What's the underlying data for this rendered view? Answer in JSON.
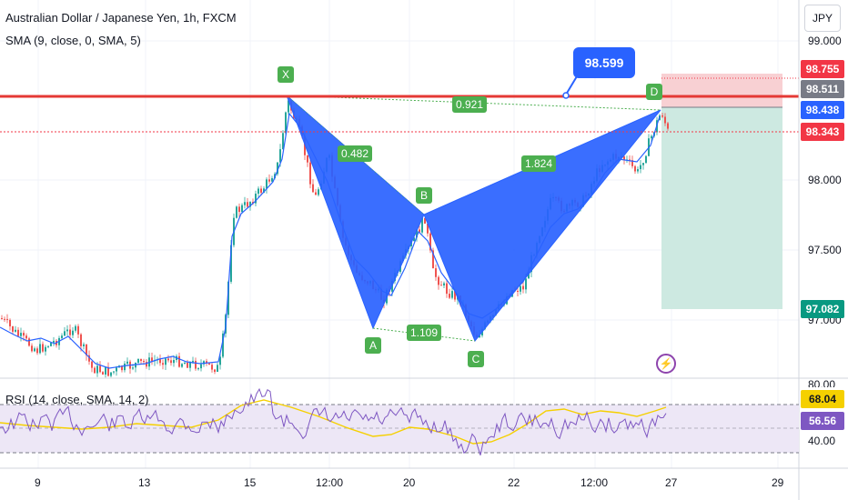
{
  "header": {
    "title": "Australian Dollar / Japanese Yen, 1h, FXCM",
    "sma_indicator": "SMA (9, close, 0, SMA, 5)",
    "rsi_indicator": "RSI (14, close, SMA, 14, 2)",
    "currency": "JPY"
  },
  "colors": {
    "pattern_fill": "#2962ff",
    "pattern_label": "#4caf50",
    "resistance_line": "#e53935",
    "stop_zone": "#f8d0d3",
    "target_zone": "#cde9e1",
    "up_candle": "#26a69a",
    "down_candle": "#ef5350",
    "rsi_line": "#7e57c2",
    "rsi_ma": "#f5d000"
  },
  "chart_data": {
    "type": "candlestick",
    "title": "Australian Dollar / Japanese Yen, 1h, FXCM",
    "x_tick_labels": [
      "9",
      "13",
      "15",
      "12:00",
      "20",
      "22",
      "12:00",
      "27",
      "29"
    ],
    "price_axis_labels": [
      "99.000",
      "98.000",
      "97.500",
      "97.000"
    ],
    "price_tags": [
      {
        "value": "98.755",
        "color": "#f23645",
        "text_color": "#ffffff"
      },
      {
        "value": "98.511",
        "color": "#787b86",
        "text_color": "#ffffff"
      },
      {
        "value": "98.438",
        "color": "#2962ff",
        "text_color": "#ffffff"
      },
      {
        "value": "98.343",
        "color": "#f23645",
        "text_color": "#ffffff"
      },
      {
        "value": "97.082",
        "color": "#089981",
        "text_color": "#ffffff"
      }
    ],
    "harmonic_pattern": {
      "points": [
        {
          "label": "X",
          "price": 98.47
        },
        {
          "label": "A",
          "price": 96.94
        },
        {
          "label": "B",
          "price": 97.68
        },
        {
          "label": "C",
          "price": 96.81
        },
        {
          "label": "D",
          "price": 98.45
        }
      ],
      "ratios": [
        "0.482",
        "1.109",
        "1.824",
        "0.921"
      ]
    },
    "callout": "98.599",
    "rsi_axis_labels": [
      "68.04",
      "56.56",
      "40.00",
      "80.00"
    ],
    "rsi_tags": [
      {
        "value": "68.04",
        "color": "#f5d000",
        "text_color": "#131722"
      },
      {
        "value": "56.56",
        "color": "#7e57c2",
        "text_color": "#ffffff"
      }
    ]
  }
}
